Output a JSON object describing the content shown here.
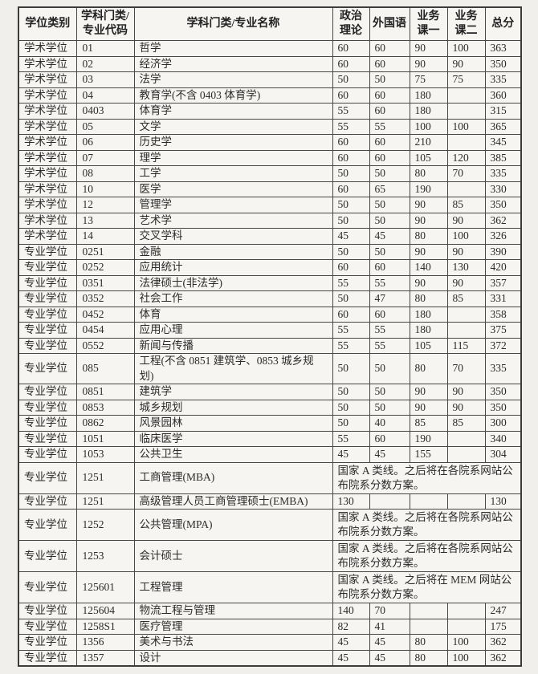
{
  "colors": {
    "page_background": "#f1efec",
    "cell_background": "#f6f5f2",
    "border": "#474747",
    "text": "#2b2b2b"
  },
  "table": {
    "header": {
      "degree_type": "学位类别",
      "code_line1": "学科门类/",
      "code_line2": "专业代码",
      "name": "学科门类/专业名称",
      "politics_line1": "政治",
      "politics_line2": "理论",
      "foreign": "外国语",
      "course1_line1": "业务",
      "course1_line2": "课一",
      "course2_line1": "业务",
      "course2_line2": "课二",
      "total": "总分"
    },
    "rows": [
      {
        "category": "学术学位",
        "code": "01",
        "name": "哲学",
        "politics": "60",
        "foreign": "60",
        "course1": "90",
        "course2": "100",
        "total": "363"
      },
      {
        "category": "学术学位",
        "code": "02",
        "name": "经济学",
        "politics": "60",
        "foreign": "60",
        "course1": "90",
        "course2": "90",
        "total": "350"
      },
      {
        "category": "学术学位",
        "code": "03",
        "name": "法学",
        "politics": "50",
        "foreign": "50",
        "course1": "75",
        "course2": "75",
        "total": "335"
      },
      {
        "category": "学术学位",
        "code": "04",
        "name": "教育学(不含 0403 体育学)",
        "politics": "60",
        "foreign": "60",
        "course1": "180",
        "course2": "",
        "total": "360"
      },
      {
        "category": "学术学位",
        "code": "0403",
        "name": "体育学",
        "politics": "55",
        "foreign": "60",
        "course1": "180",
        "course2": "",
        "total": "315"
      },
      {
        "category": "学术学位",
        "code": "05",
        "name": "文学",
        "politics": "55",
        "foreign": "55",
        "course1": "100",
        "course2": "100",
        "total": "365"
      },
      {
        "category": "学术学位",
        "code": "06",
        "name": "历史学",
        "politics": "60",
        "foreign": "60",
        "course1": "210",
        "course2": "",
        "total": "345"
      },
      {
        "category": "学术学位",
        "code": "07",
        "name": "理学",
        "politics": "60",
        "foreign": "60",
        "course1": "105",
        "course2": "120",
        "total": "385"
      },
      {
        "category": "学术学位",
        "code": "08",
        "name": "工学",
        "politics": "50",
        "foreign": "50",
        "course1": "80",
        "course2": "70",
        "total": "335"
      },
      {
        "category": "学术学位",
        "code": "10",
        "name": "医学",
        "politics": "60",
        "foreign": "65",
        "course1": "190",
        "course2": "",
        "total": "330"
      },
      {
        "category": "学术学位",
        "code": "12",
        "name": "管理学",
        "politics": "50",
        "foreign": "50",
        "course1": "90",
        "course2": "85",
        "total": "350"
      },
      {
        "category": "学术学位",
        "code": "13",
        "name": "艺术学",
        "politics": "50",
        "foreign": "50",
        "course1": "90",
        "course2": "90",
        "total": "362"
      },
      {
        "category": "学术学位",
        "code": "14",
        "name": "交叉学科",
        "politics": "45",
        "foreign": "45",
        "course1": "80",
        "course2": "100",
        "total": "326"
      },
      {
        "category": "专业学位",
        "code": "0251",
        "name": "金融",
        "politics": "50",
        "foreign": "50",
        "course1": "90",
        "course2": "90",
        "total": "390"
      },
      {
        "category": "专业学位",
        "code": "0252",
        "name": "应用统计",
        "politics": "60",
        "foreign": "60",
        "course1": "140",
        "course2": "130",
        "total": "420"
      },
      {
        "category": "专业学位",
        "code": "0351",
        "name": "法律硕士(非法学)",
        "politics": "55",
        "foreign": "55",
        "course1": "90",
        "course2": "90",
        "total": "357"
      },
      {
        "category": "专业学位",
        "code": "0352",
        "name": "社会工作",
        "politics": "50",
        "foreign": "47",
        "course1": "80",
        "course2": "85",
        "total": "331"
      },
      {
        "category": "专业学位",
        "code": "0452",
        "name": "体育",
        "politics": "60",
        "foreign": "60",
        "course1": "180",
        "course2": "",
        "total": "358"
      },
      {
        "category": "专业学位",
        "code": "0454",
        "name": "应用心理",
        "politics": "55",
        "foreign": "55",
        "course1": "180",
        "course2": "",
        "total": "375"
      },
      {
        "category": "专业学位",
        "code": "0552",
        "name": "新闻与传播",
        "politics": "55",
        "foreign": "55",
        "course1": "105",
        "course2": "115",
        "total": "372"
      },
      {
        "category": "专业学位",
        "code": "085",
        "name": "工程(不含 0851 建筑学、0853 城乡规划)",
        "politics": "50",
        "foreign": "50",
        "course1": "80",
        "course2": "70",
        "total": "335"
      },
      {
        "category": "专业学位",
        "code": "0851",
        "name": "建筑学",
        "politics": "50",
        "foreign": "50",
        "course1": "90",
        "course2": "90",
        "total": "350"
      },
      {
        "category": "专业学位",
        "code": "0853",
        "name": "城乡规划",
        "politics": "50",
        "foreign": "50",
        "course1": "90",
        "course2": "90",
        "total": "350"
      },
      {
        "category": "专业学位",
        "code": "0862",
        "name": "风景园林",
        "politics": "50",
        "foreign": "40",
        "course1": "85",
        "course2": "85",
        "total": "300"
      },
      {
        "category": "专业学位",
        "code": "1051",
        "name": "临床医学",
        "politics": "55",
        "foreign": "60",
        "course1": "190",
        "course2": "",
        "total": "340"
      },
      {
        "category": "专业学位",
        "code": "1053",
        "name": "公共卫生",
        "politics": "45",
        "foreign": "45",
        "course1": "155",
        "course2": "",
        "total": "304"
      },
      {
        "category": "专业学位",
        "code": "1251",
        "name": "工商管理(MBA)",
        "note": "国家 A 类线。之后将在各院系网站公布院系分数方案。"
      },
      {
        "category": "专业学位",
        "code": "1251",
        "name": "高级管理人员工商管理硕士(EMBA)",
        "politics": "130",
        "foreign": "",
        "course1": "",
        "course2": "",
        "total": "130"
      },
      {
        "category": "专业学位",
        "code": "1252",
        "name": "公共管理(MPA)",
        "note": "国家 A 类线。之后将在各院系网站公布院系分数方案。"
      },
      {
        "category": "专业学位",
        "code": "1253",
        "name": "会计硕士",
        "note": "国家 A 类线。之后将在各院系网站公布院系分数方案。"
      },
      {
        "category": "专业学位",
        "code": "125601",
        "name": "工程管理",
        "note": "国家 A 类线。之后将在 MEM 网站公布院系分数方案。"
      },
      {
        "category": "专业学位",
        "code": "125604",
        "name": "物流工程与管理",
        "politics": "140",
        "foreign": "70",
        "course1": "",
        "course2": "",
        "total": "247"
      },
      {
        "category": "专业学位",
        "code": "1258S1",
        "name": "医疗管理",
        "politics": "82",
        "foreign": "41",
        "course1": "",
        "course2": "",
        "total": "175"
      },
      {
        "category": "专业学位",
        "code": "1356",
        "name": "美术与书法",
        "politics": "45",
        "foreign": "45",
        "course1": "80",
        "course2": "100",
        "total": "362"
      },
      {
        "category": "专业学位",
        "code": "1357",
        "name": "设计",
        "politics": "45",
        "foreign": "45",
        "course1": "80",
        "course2": "100",
        "total": "362"
      }
    ]
  }
}
